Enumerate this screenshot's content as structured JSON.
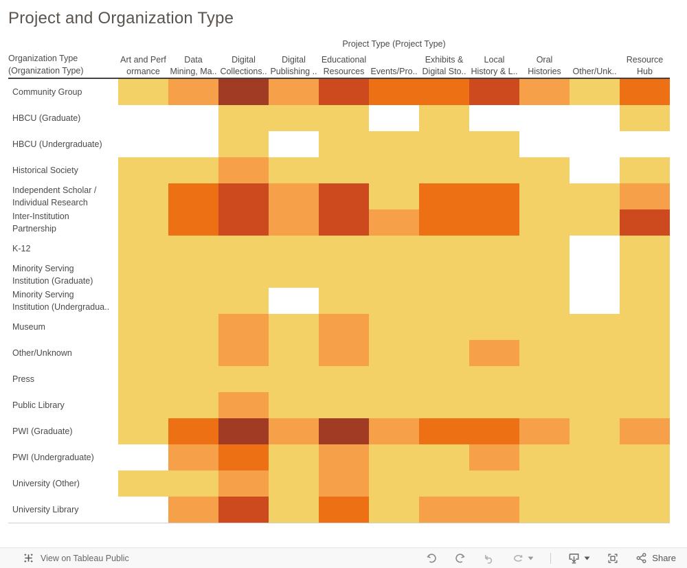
{
  "page": {
    "title": "Project and Organization Type"
  },
  "headers": {
    "column_group": "Project Type (Project Type)",
    "row_group_lines": [
      "Organization Type",
      "(Organization Type)"
    ]
  },
  "chart_data": {
    "type": "heatmap",
    "title": "Project and Organization Type",
    "x_dimension_label": "Project Type (Project Type)",
    "y_dimension_label": "Organization Type (Organization Type)",
    "legend_position": "none (not visible in view)",
    "grid": "off",
    "columns": [
      {
        "name": "Art and Performance",
        "lines": [
          "Art and Perf",
          "ormance"
        ]
      },
      {
        "name": "Data Mining, Ma..",
        "lines": [
          "Data",
          "Mining, Ma.."
        ]
      },
      {
        "name": "Digital Collections..",
        "lines": [
          "Digital",
          "Collections.."
        ]
      },
      {
        "name": "Digital Publishing ..",
        "lines": [
          "Digital",
          "Publishing .."
        ]
      },
      {
        "name": "Educational Resources",
        "lines": [
          "Educational",
          "Resources"
        ]
      },
      {
        "name": "Events/Pro..",
        "lines": [
          "Events/Pro.."
        ]
      },
      {
        "name": "Exhibits & Digital Sto..",
        "lines": [
          "Exhibits &",
          "Digital Sto.."
        ]
      },
      {
        "name": "Local History & L..",
        "lines": [
          "Local",
          "History & L.."
        ]
      },
      {
        "name": "Oral Histories",
        "lines": [
          "Oral",
          "Histories"
        ]
      },
      {
        "name": "Other/Unk..",
        "lines": [
          "Other/Unk.."
        ]
      },
      {
        "name": "Resource Hub",
        "lines": [
          "Resource",
          "Hub"
        ]
      }
    ],
    "rows": [
      {
        "name": "Community Group",
        "lines": [
          "Community Group"
        ]
      },
      {
        "name": "HBCU (Graduate)",
        "lines": [
          "HBCU (Graduate)"
        ]
      },
      {
        "name": "HBCU (Undergraduate)",
        "lines": [
          "HBCU (Undergraduate)"
        ]
      },
      {
        "name": "Historical Society",
        "lines": [
          "Historical Society"
        ]
      },
      {
        "name": "Independent Scholar / Individual Research",
        "lines": [
          "Independent Scholar /",
          "Individual Research"
        ]
      },
      {
        "name": "Inter-Institution Partnership",
        "lines": [
          "Inter-Institution",
          "Partnership"
        ]
      },
      {
        "name": "K-12",
        "lines": [
          "K-12"
        ]
      },
      {
        "name": "Minority Serving Institution (Graduate)",
        "lines": [
          "Minority Serving",
          "Institution (Graduate)"
        ]
      },
      {
        "name": "Minority Serving Institution (Undergradua..",
        "lines": [
          "Minority Serving",
          "Institution (Undergradua.."
        ]
      },
      {
        "name": "Museum",
        "lines": [
          "Museum"
        ]
      },
      {
        "name": "Other/Unknown",
        "lines": [
          "Other/Unknown"
        ]
      },
      {
        "name": "Press",
        "lines": [
          "Press"
        ]
      },
      {
        "name": "Public Library",
        "lines": [
          "Public Library"
        ]
      },
      {
        "name": "PWI (Graduate)",
        "lines": [
          "PWI (Graduate)"
        ]
      },
      {
        "name": "PWI (Undergraduate)",
        "lines": [
          "PWI (Undergraduate)"
        ]
      },
      {
        "name": "University (Other)",
        "lines": [
          "University (Other)"
        ]
      },
      {
        "name": "University Library",
        "lines": [
          "University Library"
        ]
      }
    ],
    "color_levels": [
      {
        "value": 0,
        "hex": null,
        "meaning": "no data (white)"
      },
      {
        "value": 1,
        "hex": "#f4d166",
        "meaning": "lowest"
      },
      {
        "value": 2,
        "hex": "#f7a04a",
        "meaning": "low-mid"
      },
      {
        "value": 3,
        "hex": "#ee7014",
        "meaning": "mid"
      },
      {
        "value": 4,
        "hex": "#cc4a1e",
        "meaning": "high"
      },
      {
        "value": 5,
        "hex": "#a23b24",
        "meaning": "highest"
      }
    ],
    "cells": [
      [
        1,
        2,
        5,
        2,
        4,
        3,
        3,
        4,
        2,
        1,
        3
      ],
      [
        0,
        0,
        1,
        1,
        1,
        0,
        1,
        0,
        0,
        0,
        1
      ],
      [
        0,
        0,
        1,
        0,
        1,
        1,
        1,
        1,
        0,
        0,
        0
      ],
      [
        1,
        1,
        2,
        1,
        1,
        1,
        1,
        1,
        1,
        0,
        1
      ],
      [
        1,
        3,
        4,
        2,
        4,
        1,
        3,
        3,
        1,
        1,
        2
      ],
      [
        1,
        3,
        4,
        2,
        4,
        2,
        3,
        3,
        1,
        1,
        4
      ],
      [
        1,
        1,
        1,
        1,
        1,
        1,
        1,
        1,
        1,
        0,
        1
      ],
      [
        1,
        1,
        1,
        1,
        1,
        1,
        1,
        1,
        1,
        0,
        1
      ],
      [
        1,
        1,
        1,
        0,
        1,
        1,
        1,
        1,
        1,
        0,
        1
      ],
      [
        1,
        1,
        2,
        1,
        2,
        1,
        1,
        1,
        1,
        1,
        1
      ],
      [
        1,
        1,
        2,
        1,
        2,
        1,
        1,
        2,
        1,
        1,
        1
      ],
      [
        1,
        1,
        1,
        1,
        1,
        1,
        1,
        1,
        1,
        1,
        1
      ],
      [
        1,
        1,
        2,
        1,
        1,
        1,
        1,
        1,
        1,
        1,
        1
      ],
      [
        1,
        3,
        5,
        2,
        5,
        2,
        3,
        3,
        2,
        1,
        2
      ],
      [
        0,
        2,
        3,
        1,
        2,
        1,
        1,
        2,
        1,
        1,
        1
      ],
      [
        1,
        1,
        2,
        1,
        2,
        1,
        1,
        1,
        1,
        1,
        1
      ],
      [
        0,
        2,
        4,
        1,
        3,
        1,
        2,
        2,
        1,
        1,
        1
      ]
    ]
  },
  "toolbar": {
    "view_on_label": "View on Tableau Public",
    "share_label": "Share",
    "icon_color": "#8a8a8a",
    "icons": [
      "tableau-logo",
      "undo",
      "redo",
      "revert",
      "refresh",
      "refresh-caret",
      "separator",
      "download",
      "download-caret",
      "fullscreen",
      "share"
    ]
  }
}
